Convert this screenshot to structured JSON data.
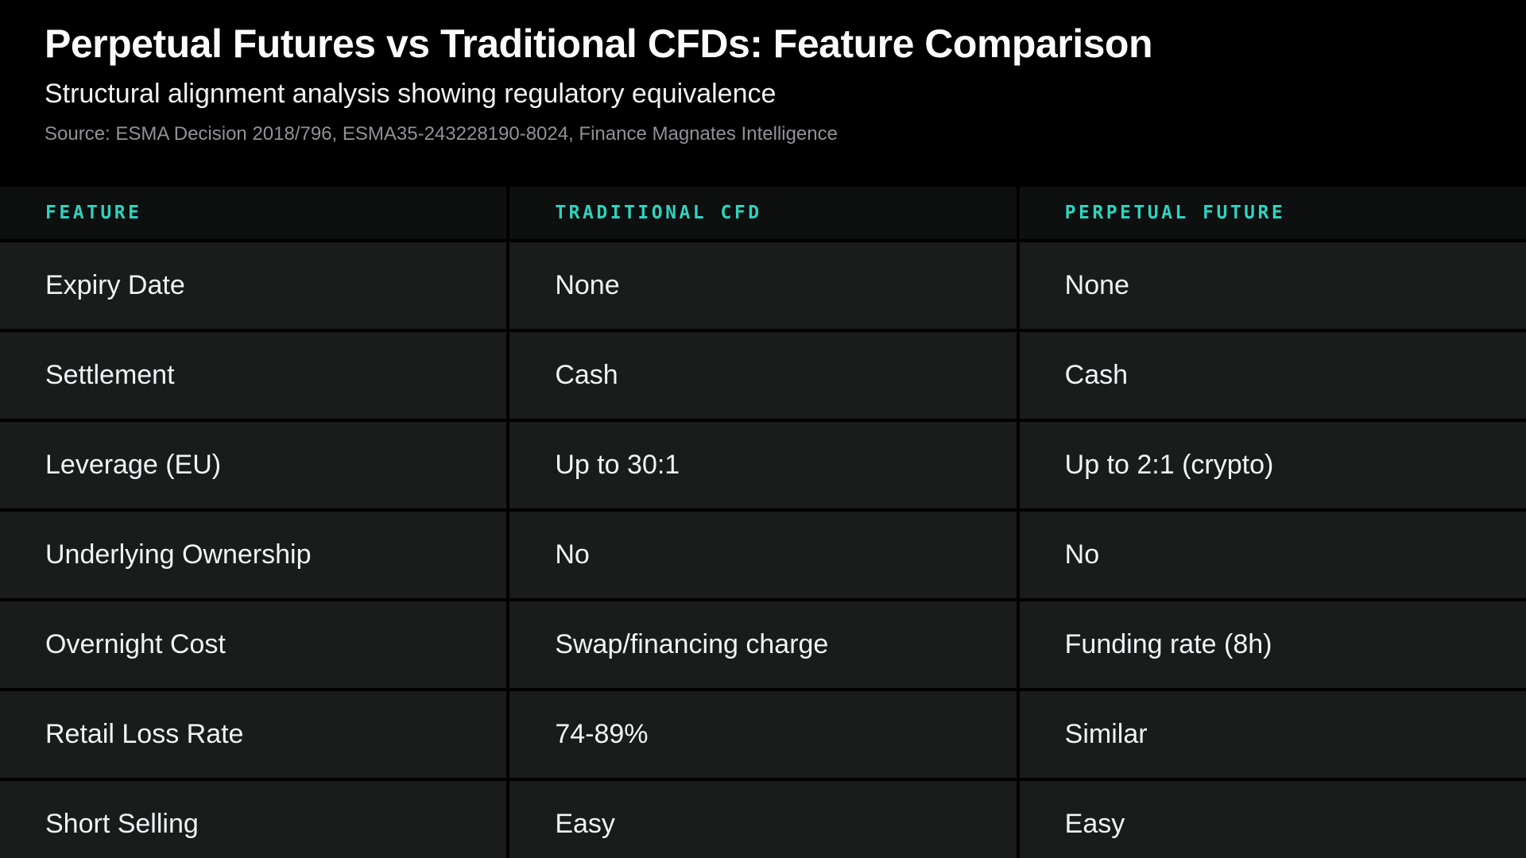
{
  "header": {
    "title": "Perpetual Futures vs Traditional CFDs: Feature Comparison",
    "subtitle": "Structural alignment analysis showing regulatory equivalence",
    "source": "Source: ESMA Decision 2018/796, ESMA35-243228190-8024, Finance Magnates Intelligence"
  },
  "colors": {
    "accent_teal": "#2dd4bf",
    "page_background": "#000000",
    "header_row_background": "#0e0f0f",
    "data_row_background": "#1a1b1b",
    "cell_text": "#f2f3f4",
    "source_text": "#8f9296"
  },
  "chart_data": {
    "type": "table",
    "title": "Perpetual Futures vs Traditional CFDs: Feature Comparison",
    "subtitle": "Structural alignment analysis showing regulatory equivalence",
    "source": "Source: ESMA Decision 2018/796, ESMA35-243228190-8024, Finance Magnates Intelligence",
    "columns": [
      "FEATURE",
      "TRADITIONAL CFD",
      "PERPETUAL FUTURE"
    ],
    "rows": [
      [
        "Expiry Date",
        "None",
        "None"
      ],
      [
        "Settlement",
        "Cash",
        "Cash"
      ],
      [
        "Leverage (EU)",
        "Up to 30:1",
        "Up to 2:1 (crypto)"
      ],
      [
        "Underlying Ownership",
        "No",
        "No"
      ],
      [
        "Overnight Cost",
        "Swap/financing charge",
        "Funding rate (8h)"
      ],
      [
        "Retail Loss Rate",
        "74-89%",
        "Similar"
      ],
      [
        "Short Selling",
        "Easy",
        "Easy"
      ]
    ]
  }
}
